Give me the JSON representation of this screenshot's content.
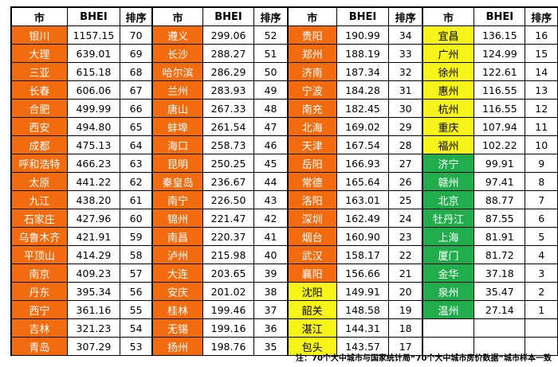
{
  "header": [
    "市",
    "BHEI",
    "排序"
  ],
  "colors": {
    "orange": "#f26b0f",
    "yellow": "#f7f41a",
    "green": "#22ad4c"
  },
  "groups": [
    {
      "rows": [
        {
          "city": "银川",
          "bhei": "1157.15",
          "rank": "70",
          "color": "orange"
        },
        {
          "city": "大理",
          "bhei": "639.01",
          "rank": "69",
          "color": "orange"
        },
        {
          "city": "三亚",
          "bhei": "615.18",
          "rank": "68",
          "color": "orange"
        },
        {
          "city": "长春",
          "bhei": "606.06",
          "rank": "67",
          "color": "orange"
        },
        {
          "city": "合肥",
          "bhei": "499.99",
          "rank": "66",
          "color": "orange"
        },
        {
          "city": "西安",
          "bhei": "494.80",
          "rank": "65",
          "color": "orange"
        },
        {
          "city": "成都",
          "bhei": "475.13",
          "rank": "64",
          "color": "orange"
        },
        {
          "city": "呼和浩特",
          "bhei": "466.23",
          "rank": "63",
          "color": "orange"
        },
        {
          "city": "太原",
          "bhei": "441.22",
          "rank": "62",
          "color": "orange"
        },
        {
          "city": "九江",
          "bhei": "438.20",
          "rank": "61",
          "color": "orange"
        },
        {
          "city": "石家庄",
          "bhei": "427.96",
          "rank": "60",
          "color": "orange"
        },
        {
          "city": "乌鲁木齐",
          "bhei": "421.91",
          "rank": "59",
          "color": "orange"
        },
        {
          "city": "平顶山",
          "bhei": "414.29",
          "rank": "58",
          "color": "orange"
        },
        {
          "city": "南京",
          "bhei": "409.23",
          "rank": "57",
          "color": "orange"
        },
        {
          "city": "丹东",
          "bhei": "395.34",
          "rank": "56",
          "color": "orange"
        },
        {
          "city": "西宁",
          "bhei": "361.16",
          "rank": "55",
          "color": "orange"
        },
        {
          "city": "吉林",
          "bhei": "321.23",
          "rank": "54",
          "color": "orange"
        },
        {
          "city": "青岛",
          "bhei": "307.29",
          "rank": "53",
          "color": "orange"
        }
      ]
    },
    {
      "rows": [
        {
          "city": "遵义",
          "bhei": "299.06",
          "rank": "52",
          "color": "orange"
        },
        {
          "city": "长沙",
          "bhei": "288.27",
          "rank": "51",
          "color": "orange"
        },
        {
          "city": "哈尔滨",
          "bhei": "286.29",
          "rank": "50",
          "color": "orange"
        },
        {
          "city": "兰州",
          "bhei": "283.93",
          "rank": "49",
          "color": "orange"
        },
        {
          "city": "唐山",
          "bhei": "267.33",
          "rank": "48",
          "color": "orange"
        },
        {
          "city": "蚌埠",
          "bhei": "261.54",
          "rank": "47",
          "color": "orange"
        },
        {
          "city": "海口",
          "bhei": "258.73",
          "rank": "46",
          "color": "orange"
        },
        {
          "city": "昆明",
          "bhei": "250.25",
          "rank": "45",
          "color": "orange"
        },
        {
          "city": "秦皇岛",
          "bhei": "236.67",
          "rank": "44",
          "color": "orange"
        },
        {
          "city": "南宁",
          "bhei": "226.50",
          "rank": "43",
          "color": "orange"
        },
        {
          "city": "锦州",
          "bhei": "221.47",
          "rank": "42",
          "color": "orange"
        },
        {
          "city": "南昌",
          "bhei": "220.37",
          "rank": "41",
          "color": "orange"
        },
        {
          "city": "泸州",
          "bhei": "215.98",
          "rank": "40",
          "color": "orange"
        },
        {
          "city": "大连",
          "bhei": "203.65",
          "rank": "39",
          "color": "orange"
        },
        {
          "city": "安庆",
          "bhei": "201.02",
          "rank": "38",
          "color": "orange"
        },
        {
          "city": "桂林",
          "bhei": "199.46",
          "rank": "37",
          "color": "orange"
        },
        {
          "city": "无锡",
          "bhei": "199.16",
          "rank": "36",
          "color": "orange"
        },
        {
          "city": "扬州",
          "bhei": "198.76",
          "rank": "35",
          "color": "orange"
        }
      ]
    },
    {
      "rows": [
        {
          "city": "贵阳",
          "bhei": "190.99",
          "rank": "34",
          "color": "orange"
        },
        {
          "city": "郑州",
          "bhei": "188.19",
          "rank": "33",
          "color": "orange"
        },
        {
          "city": "济南",
          "bhei": "187.34",
          "rank": "32",
          "color": "orange"
        },
        {
          "city": "宁波",
          "bhei": "184.28",
          "rank": "31",
          "color": "orange"
        },
        {
          "city": "南充",
          "bhei": "182.45",
          "rank": "30",
          "color": "orange"
        },
        {
          "city": "北海",
          "bhei": "169.02",
          "rank": "29",
          "color": "orange"
        },
        {
          "city": "天津",
          "bhei": "167.54",
          "rank": "28",
          "color": "orange"
        },
        {
          "city": "岳阳",
          "bhei": "166.93",
          "rank": "27",
          "color": "orange"
        },
        {
          "city": "常德",
          "bhei": "165.64",
          "rank": "26",
          "color": "orange"
        },
        {
          "city": "洛阳",
          "bhei": "163.01",
          "rank": "25",
          "color": "orange"
        },
        {
          "city": "深圳",
          "bhei": "162.49",
          "rank": "24",
          "color": "orange"
        },
        {
          "city": "烟台",
          "bhei": "160.90",
          "rank": "23",
          "color": "orange"
        },
        {
          "city": "武汉",
          "bhei": "158.17",
          "rank": "22",
          "color": "orange"
        },
        {
          "city": "襄阳",
          "bhei": "156.66",
          "rank": "21",
          "color": "orange"
        },
        {
          "city": "沈阳",
          "bhei": "149.91",
          "rank": "20",
          "color": "yellow"
        },
        {
          "city": "韶关",
          "bhei": "148.58",
          "rank": "19",
          "color": "yellow"
        },
        {
          "city": "湛江",
          "bhei": "144.31",
          "rank": "18",
          "color": "yellow"
        },
        {
          "city": "包头",
          "bhei": "143.57",
          "rank": "17",
          "color": "yellow"
        }
      ]
    },
    {
      "rows": [
        {
          "city": "宜昌",
          "bhei": "136.15",
          "rank": "16",
          "color": "yellow"
        },
        {
          "city": "广州",
          "bhei": "124.99",
          "rank": "15",
          "color": "yellow"
        },
        {
          "city": "徐州",
          "bhei": "122.61",
          "rank": "14",
          "color": "yellow"
        },
        {
          "city": "惠州",
          "bhei": "116.55",
          "rank": "13",
          "color": "yellow"
        },
        {
          "city": "杭州",
          "bhei": "116.55",
          "rank": "12",
          "color": "yellow"
        },
        {
          "city": "重庆",
          "bhei": "107.94",
          "rank": "11",
          "color": "yellow"
        },
        {
          "city": "福州",
          "bhei": "102.22",
          "rank": "10",
          "color": "yellow"
        },
        {
          "city": "济宁",
          "bhei": "99.91",
          "rank": "9",
          "color": "green"
        },
        {
          "city": "赣州",
          "bhei": "97.41",
          "rank": "8",
          "color": "green"
        },
        {
          "city": "北京",
          "bhei": "88.77",
          "rank": "7",
          "color": "green"
        },
        {
          "city": "牡丹江",
          "bhei": "87.55",
          "rank": "6",
          "color": "green"
        },
        {
          "city": "上海",
          "bhei": "81.91",
          "rank": "5",
          "color": "green"
        },
        {
          "city": "厦门",
          "bhei": "81.72",
          "rank": "4",
          "color": "green"
        },
        {
          "city": "金华",
          "bhei": "37.18",
          "rank": "3",
          "color": "green"
        },
        {
          "city": "泉州",
          "bhei": "35.47",
          "rank": "2",
          "color": "green"
        },
        {
          "city": "温州",
          "bhei": "27.14",
          "rank": "1",
          "color": "green"
        },
        {
          "city": "",
          "bhei": "",
          "rank": "",
          "color": "empty"
        },
        {
          "city": "",
          "bhei": "",
          "rank": "",
          "color": "empty"
        }
      ]
    }
  ],
  "note": "注：70个大中城市与国家统计局“70个大中城市房价数据”城市样本一致"
}
